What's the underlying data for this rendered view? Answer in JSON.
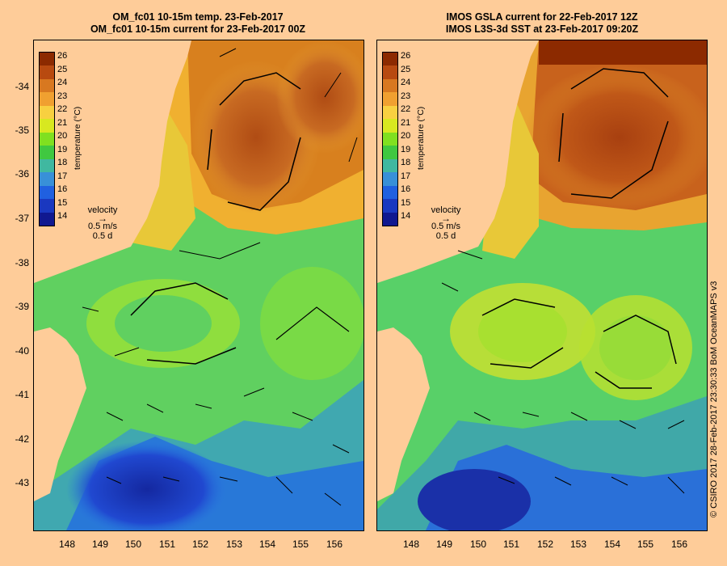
{
  "left_panel": {
    "title_line1": "OM_fc01 10-15m temp. 23-Feb-2017",
    "title_line2": "OM_fc01 10-15m current for 23-Feb-2017 00Z"
  },
  "right_panel": {
    "title_line1": "IMOS GSLA current for 22-Feb-2017 12Z",
    "title_line2": "IMOS L3S-3d SST at 23-Feb-2017 09:20Z"
  },
  "colorbar": {
    "title": "temperature (°C)",
    "ticks": [
      "26",
      "25",
      "24",
      "23",
      "22",
      "21",
      "20",
      "19",
      "18",
      "17",
      "16",
      "15",
      "14"
    ],
    "colors": [
      "#8c2a00",
      "#b84a10",
      "#d87820",
      "#f0a030",
      "#f8d040",
      "#d8e820",
      "#80e020",
      "#40c840",
      "#40b8a0",
      "#3890d8",
      "#2060e0",
      "#1a38c0",
      "#101890"
    ]
  },
  "velocity_legend": {
    "label": "velocity",
    "speed": "0.5 m/s",
    "duration": "0.5 d"
  },
  "axes": {
    "lat_ticks": [
      "-34",
      "-35",
      "-36",
      "-37",
      "-38",
      "-39",
      "-40",
      "-41",
      "-42",
      "-43"
    ],
    "lon_ticks": [
      "148",
      "149",
      "150",
      "151",
      "152",
      "153",
      "154",
      "155",
      "156"
    ]
  },
  "credit": "© CSIRO 2017  28-Feb-2017 23:30:33 BoM OceanMAPS v3",
  "colors": {
    "land": "#fecc99",
    "warm_core": "#b8561a",
    "mid_water": "#f0b030",
    "shelf_water": "#58d068",
    "cold_water": "#1848c8"
  }
}
